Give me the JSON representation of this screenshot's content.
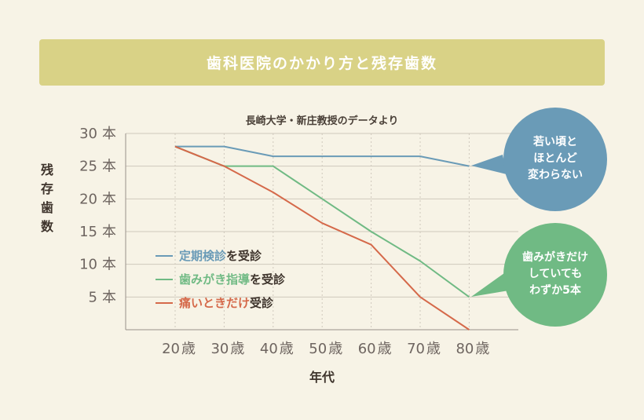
{
  "header": {
    "title": "歯科医院のかかり方と残存歯数"
  },
  "chart_data": {
    "type": "line",
    "subtitle": "長崎大学・新庄教授のデータより",
    "ylabel": "残存歯数",
    "xlabel": "年代",
    "ylim": [
      0,
      30
    ],
    "y_ticks": [
      {
        "value": 30,
        "label": "30",
        "unit": "本"
      },
      {
        "value": 25,
        "label": "25",
        "unit": "本"
      },
      {
        "value": 20,
        "label": "20",
        "unit": "本"
      },
      {
        "value": 15,
        "label": "15",
        "unit": "本"
      },
      {
        "value": 10,
        "label": "10",
        "unit": "本"
      },
      {
        "value": 5,
        "label": "5",
        "unit": "本"
      }
    ],
    "categories": [
      "20",
      "30",
      "40",
      "50",
      "60",
      "70",
      "80"
    ],
    "x_unit": "歳",
    "grid": true,
    "series": [
      {
        "color": "#6a9bb7",
        "legend": [
          {
            "text": "定期検診",
            "colored": true
          },
          {
            "text": "を受診",
            "colored": false
          }
        ],
        "values": [
          28,
          28,
          26.5,
          26.5,
          26.5,
          26.5,
          25
        ]
      },
      {
        "color": "#70ba84",
        "legend": [
          {
            "text": "歯みがき指導",
            "colored": true
          },
          {
            "text": "を受診",
            "colored": false
          }
        ],
        "values": [
          28,
          25,
          25,
          20,
          15,
          10.5,
          5
        ]
      },
      {
        "color": "#d5694a",
        "legend": [
          {
            "text": "痛いときだけ",
            "colored": true
          },
          {
            "text": "受診",
            "colored": false
          }
        ],
        "values": [
          28,
          25,
          21,
          16.3,
          13,
          5,
          0
        ]
      }
    ],
    "annotations": [
      {
        "lines": [
          "若い頃と",
          "ほとんど",
          "変わらない"
        ],
        "color": "#6a9bb7"
      },
      {
        "lines": [
          "歯みがきだけ",
          "していても",
          "わずか5本"
        ],
        "color": "#70ba84"
      }
    ]
  }
}
